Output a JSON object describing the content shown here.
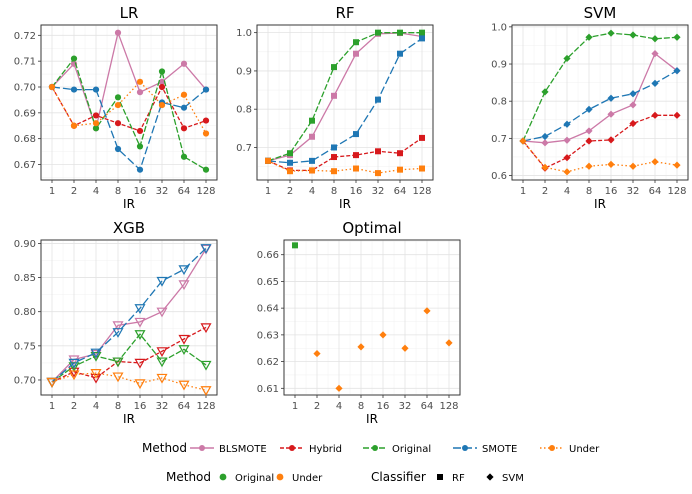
{
  "colors": {
    "BLSMOTE": "#cc79a7",
    "Hybrid": "#d7191c",
    "Original": "#2ca02c",
    "SMOTE": "#1f77b4",
    "Under": "#ff7f0e"
  },
  "legend1": {
    "title": "Method",
    "items": [
      "BLSMOTE",
      "Hybrid",
      "Original",
      "SMOTE",
      "Under"
    ]
  },
  "legend2": {
    "method_title": "Method",
    "method_items": [
      "Original",
      "Under"
    ],
    "classifier_title": "Classifier",
    "classifier_items": [
      "RF",
      "SVM"
    ]
  },
  "chart_data": [
    {
      "panel": "LR",
      "type": "line",
      "title": "LR",
      "xlabel": "IR",
      "ylabel": "",
      "x_scale": "log2",
      "x_ticks": [
        "1",
        "2",
        "4",
        "8",
        "16",
        "32",
        "64",
        "128"
      ],
      "ylim": [
        0.664,
        0.724
      ],
      "y_ticks": [
        0.67,
        0.68,
        0.69,
        0.7,
        0.71,
        0.72
      ],
      "y_decimals": 2,
      "marker": "circle",
      "series": [
        {
          "name": "BLSMOTE",
          "x": [
            1,
            2,
            4,
            8,
            16,
            32,
            64,
            128
          ],
          "y": [
            0.7,
            0.709,
            0.684,
            0.721,
            0.698,
            0.702,
            0.709,
            0.699
          ]
        },
        {
          "name": "Hybrid",
          "x": [
            1,
            2,
            4,
            8,
            16,
            32,
            64,
            128
          ],
          "y": [
            0.7,
            0.685,
            0.689,
            0.686,
            0.683,
            0.7,
            0.684,
            0.687
          ]
        },
        {
          "name": "Original",
          "x": [
            1,
            2,
            4,
            8,
            16,
            32,
            64,
            128
          ],
          "y": [
            0.7,
            0.711,
            0.684,
            0.696,
            0.677,
            0.706,
            0.673,
            0.668
          ]
        },
        {
          "name": "SMOTE",
          "x": [
            1,
            2,
            4,
            8,
            16,
            32,
            64,
            128
          ],
          "y": [
            0.7,
            0.699,
            0.699,
            0.676,
            0.668,
            0.694,
            0.692,
            0.699
          ]
        },
        {
          "name": "Under",
          "x": [
            1,
            2,
            4,
            8,
            16,
            32,
            64,
            128
          ],
          "y": [
            0.7,
            0.685,
            0.686,
            0.693,
            0.702,
            0.693,
            0.697,
            0.682
          ]
        }
      ]
    },
    {
      "panel": "RF",
      "type": "line",
      "title": "RF",
      "xlabel": "IR",
      "ylabel": "",
      "x_scale": "log2",
      "x_ticks": [
        "1",
        "2",
        "4",
        "8",
        "16",
        "32",
        "64",
        "128"
      ],
      "ylim": [
        0.615,
        1.02
      ],
      "y_ticks": [
        0.7,
        0.8,
        0.9,
        1.0
      ],
      "y_decimals": 1,
      "marker": "square",
      "series": [
        {
          "name": "BLSMOTE",
          "x": [
            1,
            2,
            4,
            8,
            16,
            32,
            64,
            128
          ],
          "y": [
            0.665,
            0.68,
            0.728,
            0.835,
            0.945,
            0.997,
            0.999,
            0.99
          ]
        },
        {
          "name": "Hybrid",
          "x": [
            1,
            2,
            4,
            8,
            16,
            32,
            64,
            128
          ],
          "y": [
            0.665,
            0.64,
            0.64,
            0.675,
            0.68,
            0.69,
            0.685,
            0.725
          ]
        },
        {
          "name": "Original",
          "x": [
            1,
            2,
            4,
            8,
            16,
            32,
            64,
            128
          ],
          "y": [
            0.665,
            0.685,
            0.77,
            0.91,
            0.975,
            1.0,
            1.0,
            1.0
          ]
        },
        {
          "name": "SMOTE",
          "x": [
            1,
            2,
            4,
            8,
            16,
            32,
            64,
            128
          ],
          "y": [
            0.665,
            0.66,
            0.665,
            0.7,
            0.735,
            0.825,
            0.945,
            0.985
          ]
        },
        {
          "name": "Under",
          "x": [
            1,
            2,
            4,
            8,
            16,
            32,
            64,
            128
          ],
          "y": [
            0.665,
            0.638,
            0.64,
            0.638,
            0.645,
            0.633,
            0.642,
            0.645
          ]
        }
      ]
    },
    {
      "panel": "SVM",
      "type": "line",
      "title": "SVM",
      "xlabel": "IR",
      "ylabel": "",
      "x_scale": "log2",
      "x_ticks": [
        "1",
        "2",
        "4",
        "8",
        "16",
        "32",
        "64",
        "128"
      ],
      "ylim": [
        0.588,
        1.005
      ],
      "y_ticks": [
        0.6,
        0.7,
        0.8,
        0.9,
        1.0
      ],
      "y_decimals": 1,
      "marker": "diamond",
      "series": [
        {
          "name": "BLSMOTE",
          "x": [
            1,
            2,
            4,
            8,
            16,
            32,
            64,
            128
          ],
          "y": [
            0.693,
            0.688,
            0.695,
            0.72,
            0.765,
            0.79,
            0.928,
            0.882
          ]
        },
        {
          "name": "Hybrid",
          "x": [
            1,
            2,
            4,
            8,
            16,
            32,
            64,
            128
          ],
          "y": [
            0.693,
            0.62,
            0.648,
            0.693,
            0.696,
            0.74,
            0.762,
            0.762
          ]
        },
        {
          "name": "Original",
          "x": [
            1,
            2,
            4,
            8,
            16,
            32,
            64,
            128
          ],
          "y": [
            0.693,
            0.825,
            0.915,
            0.972,
            0.983,
            0.978,
            0.968,
            0.972
          ]
        },
        {
          "name": "SMOTE",
          "x": [
            1,
            2,
            4,
            8,
            16,
            32,
            64,
            128
          ],
          "y": [
            0.693,
            0.705,
            0.738,
            0.778,
            0.808,
            0.82,
            0.848,
            0.882
          ]
        },
        {
          "name": "Under",
          "x": [
            1,
            2,
            4,
            8,
            16,
            32,
            64,
            128
          ],
          "y": [
            0.693,
            0.622,
            0.61,
            0.625,
            0.63,
            0.625,
            0.637,
            0.628
          ]
        }
      ]
    },
    {
      "panel": "XGB",
      "type": "line",
      "title": "XGB",
      "xlabel": "IR",
      "ylabel": "",
      "x_scale": "log2",
      "x_ticks": [
        "1",
        "2",
        "4",
        "8",
        "16",
        "32",
        "64",
        "128"
      ],
      "ylim": [
        0.678,
        0.905
      ],
      "y_ticks": [
        0.7,
        0.75,
        0.8,
        0.85,
        0.9
      ],
      "y_decimals": 2,
      "marker": "triangle-down-open",
      "series": [
        {
          "name": "BLSMOTE",
          "x": [
            1,
            2,
            4,
            8,
            16,
            32,
            64,
            128
          ],
          "y": [
            0.697,
            0.73,
            0.738,
            0.78,
            0.785,
            0.8,
            0.84,
            0.892
          ]
        },
        {
          "name": "Hybrid",
          "x": [
            1,
            2,
            4,
            8,
            16,
            32,
            64,
            128
          ],
          "y": [
            0.697,
            0.712,
            0.703,
            0.727,
            0.725,
            0.742,
            0.76,
            0.777
          ]
        },
        {
          "name": "Original",
          "x": [
            1,
            2,
            4,
            8,
            16,
            32,
            64,
            128
          ],
          "y": [
            0.697,
            0.72,
            0.735,
            0.727,
            0.767,
            0.727,
            0.745,
            0.722
          ]
        },
        {
          "name": "SMOTE",
          "x": [
            1,
            2,
            4,
            8,
            16,
            32,
            64,
            128
          ],
          "y": [
            0.697,
            0.725,
            0.74,
            0.77,
            0.805,
            0.845,
            0.862,
            0.893
          ]
        },
        {
          "name": "Under",
          "x": [
            1,
            2,
            4,
            8,
            16,
            32,
            64,
            128
          ],
          "y": [
            0.697,
            0.708,
            0.71,
            0.705,
            0.695,
            0.703,
            0.693,
            0.685
          ]
        }
      ]
    },
    {
      "panel": "Optimal",
      "type": "scatter",
      "title": "Optimal",
      "xlabel": "IR",
      "ylabel": "",
      "x_scale": "log2",
      "x_ticks": [
        "1",
        "2",
        "4",
        "8",
        "16",
        "32",
        "64",
        "128"
      ],
      "ylim": [
        0.6075,
        0.6655
      ],
      "y_ticks": [
        0.61,
        0.62,
        0.63,
        0.64,
        0.65,
        0.66
      ],
      "y_decimals": 2,
      "points": [
        {
          "x": 1,
          "y": 0.6635,
          "method": "Original",
          "classifier": "RF"
        },
        {
          "x": 2,
          "y": 0.623,
          "method": "Under",
          "classifier": "SVM"
        },
        {
          "x": 4,
          "y": 0.61,
          "method": "Under",
          "classifier": "SVM"
        },
        {
          "x": 8,
          "y": 0.6255,
          "method": "Under",
          "classifier": "SVM"
        },
        {
          "x": 16,
          "y": 0.63,
          "method": "Under",
          "classifier": "SVM"
        },
        {
          "x": 32,
          "y": 0.625,
          "method": "Under",
          "classifier": "SVM"
        },
        {
          "x": 64,
          "y": 0.639,
          "method": "Under",
          "classifier": "SVM"
        },
        {
          "x": 128,
          "y": 0.627,
          "method": "Under",
          "classifier": "SVM"
        }
      ]
    }
  ]
}
